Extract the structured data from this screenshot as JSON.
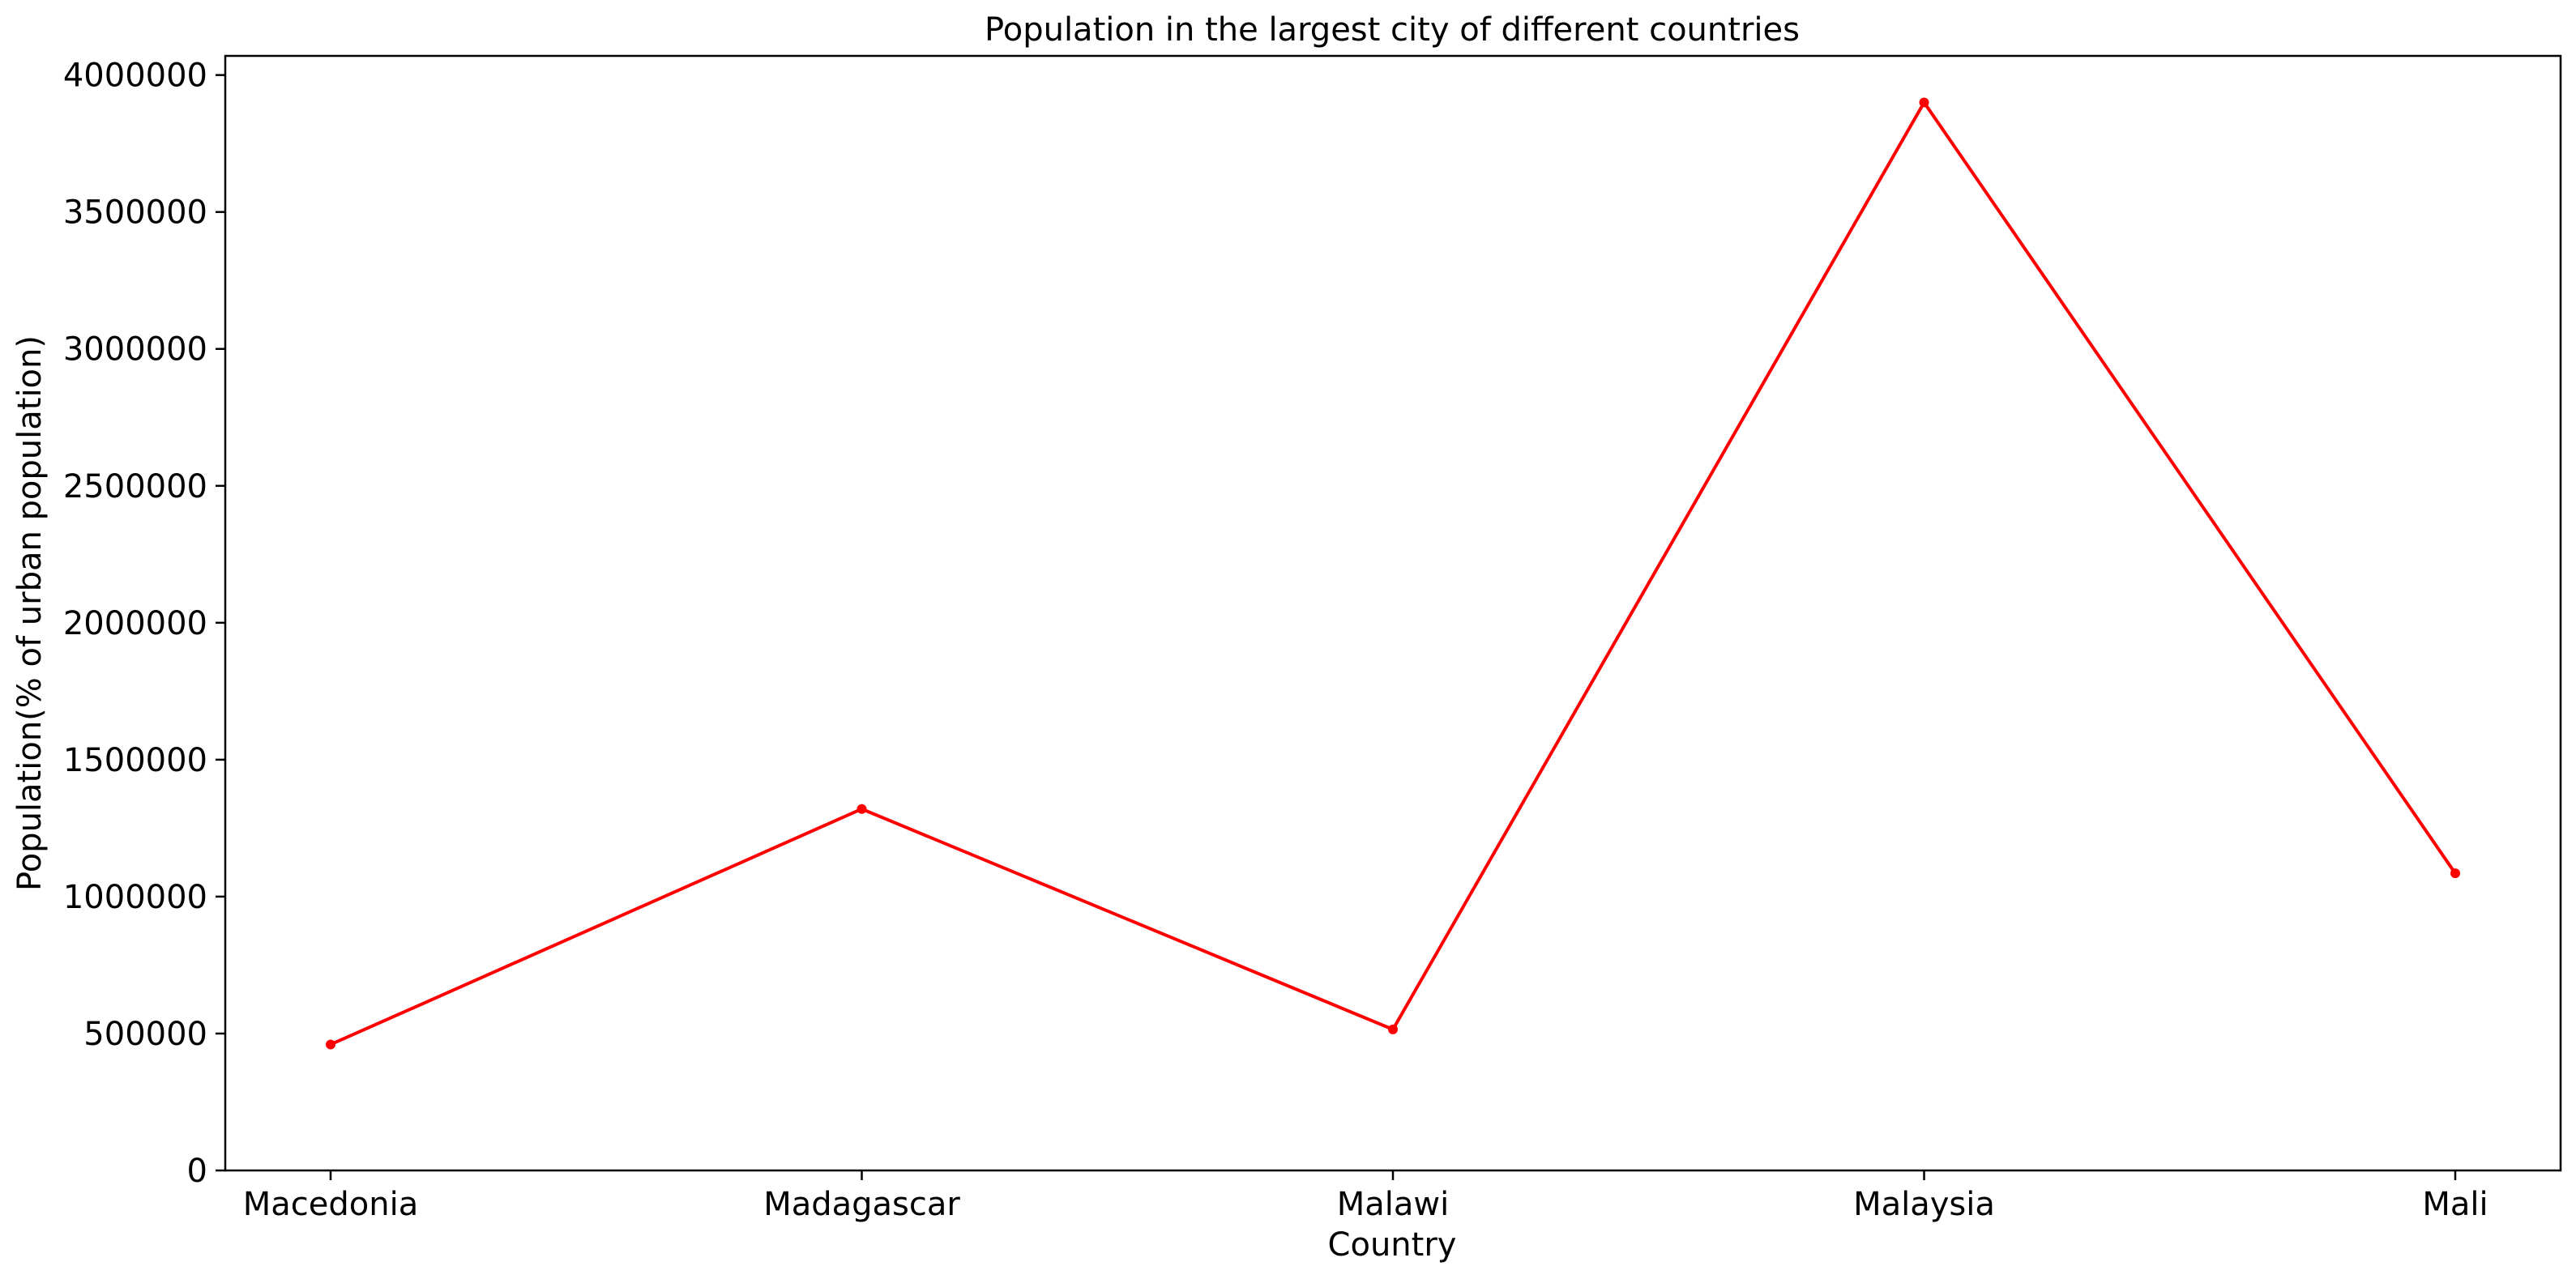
{
  "chart_data": {
    "type": "line",
    "title": "Population in the largest city of different countries",
    "xlabel": "Country",
    "ylabel": "Population(% of urban population)",
    "categories": [
      "Macedonia",
      "Madagascar",
      "Malawi",
      "Malaysia",
      "Mali"
    ],
    "series": [
      {
        "values": [
          460000,
          1320000,
          515000,
          3900000,
          1085000
        ],
        "color": "#ff0000",
        "marker": "circle"
      }
    ],
    "ylim": [
      0,
      4070000
    ],
    "yticks": [
      0,
      500000,
      1000000,
      1500000,
      2000000,
      2500000,
      3000000,
      3500000,
      4000000
    ],
    "grid": false,
    "legend": "none"
  }
}
